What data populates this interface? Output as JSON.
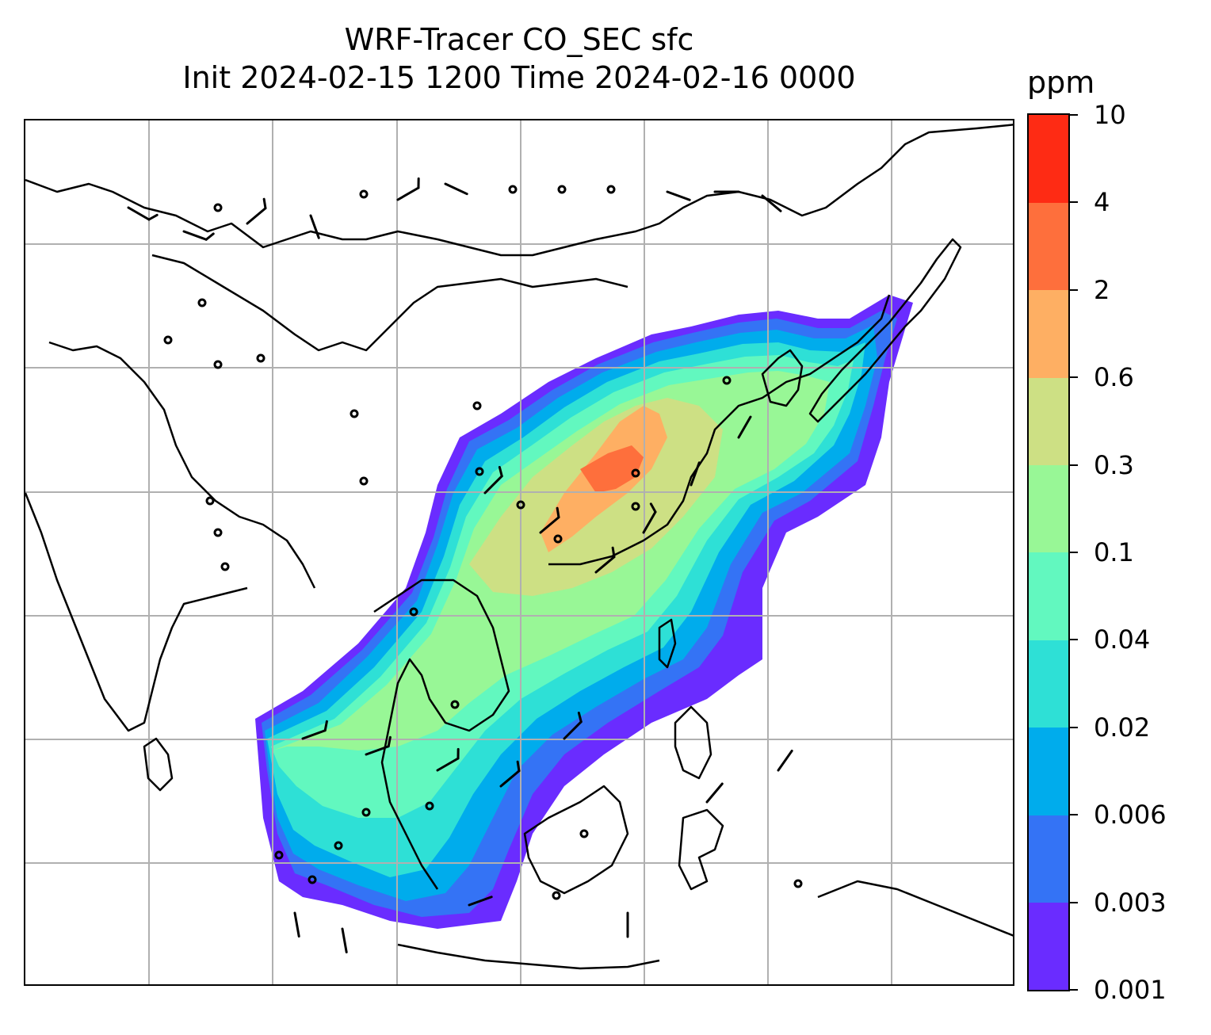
{
  "title": {
    "line1": "WRF-Tracer CO_SEC sfc",
    "line2": "Init 2024-02-15 1200 Time 2024-02-16 0000"
  },
  "colorbar": {
    "unit": "ppm",
    "levels": [
      "0.001",
      "0.003",
      "0.006",
      "0.02",
      "0.04",
      "0.1",
      "0.3",
      "0.6",
      "2",
      "4",
      "10"
    ],
    "colors": [
      "#6a2cff",
      "#3473f5",
      "#00acec",
      "#2ee0d6",
      "#62f8bf",
      "#98f796",
      "#cde084",
      "#feaf63",
      "#fe6f3c",
      "#fe2b14"
    ]
  },
  "map": {
    "type": "filled contour with wind barbs",
    "variable": "CO_SEC surface tracer",
    "gridlines": true,
    "coastlines": true,
    "colors": {
      "land_line": "#000000",
      "grid": "#b0b0b0"
    }
  }
}
